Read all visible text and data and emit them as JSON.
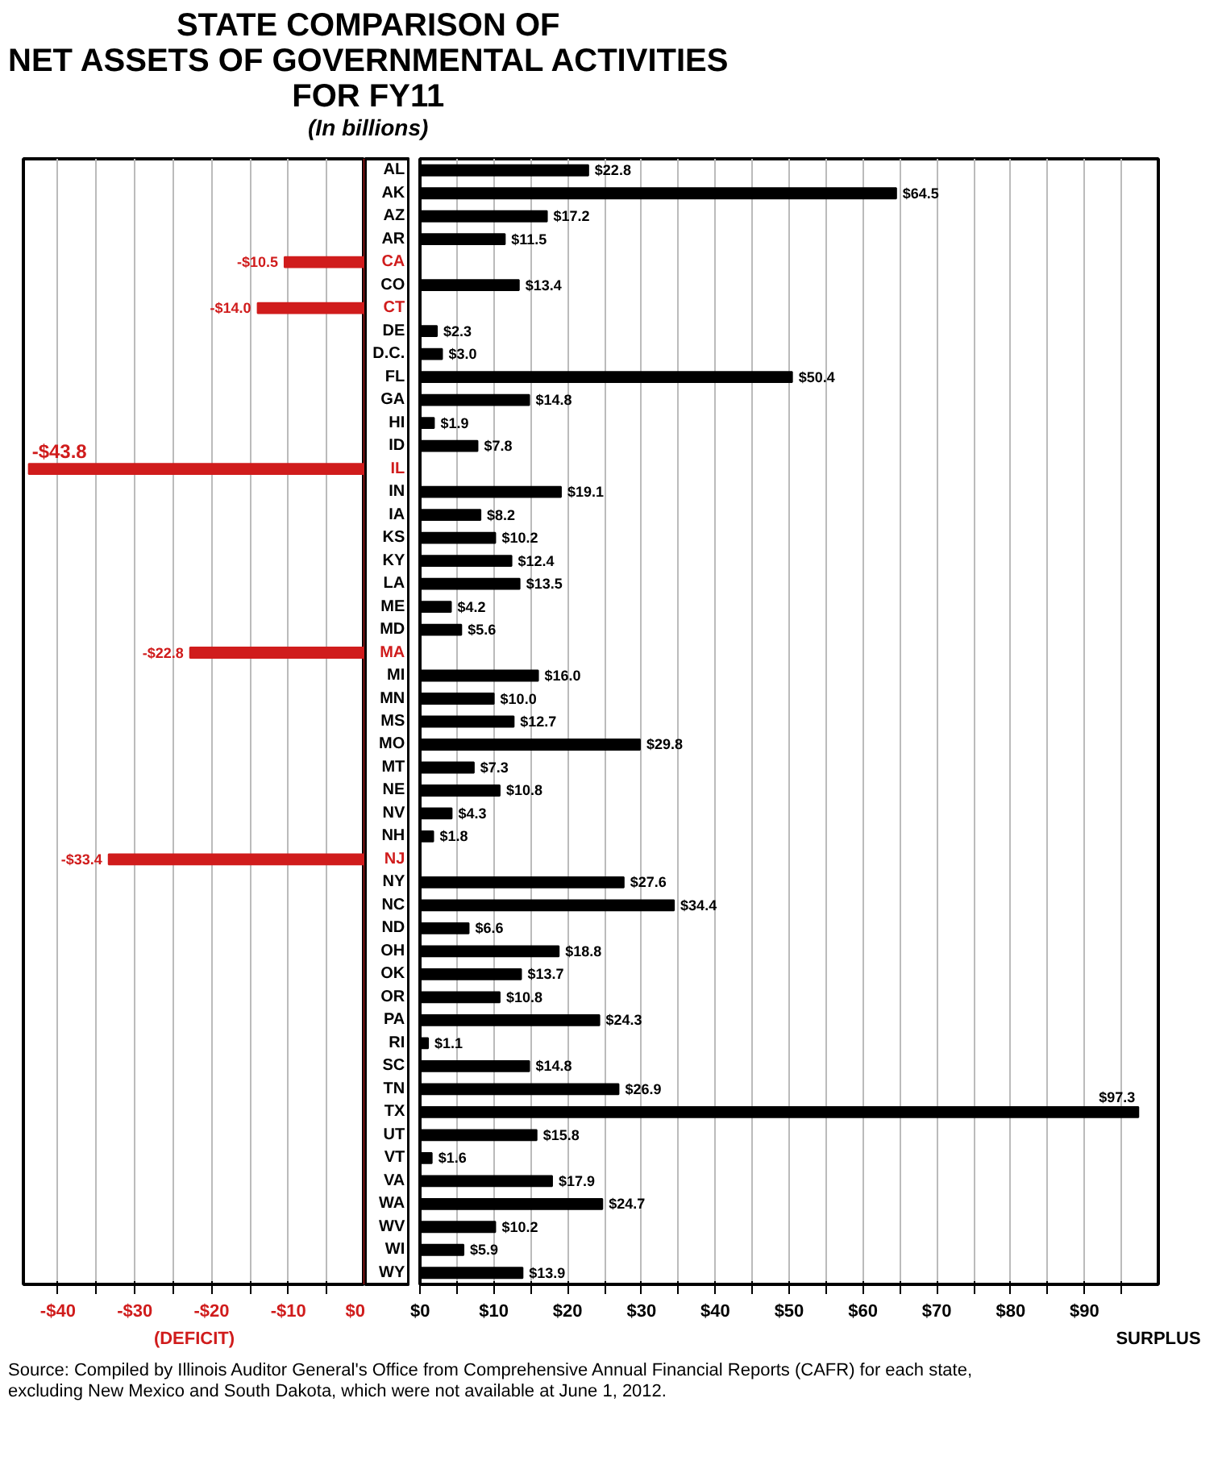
{
  "chart_data": [
    {
      "type": "bar",
      "orientation": "horizontal",
      "title": "STATE COMPARISON OF\nNET ASSETS OF GOVERNMENTAL ACTIVITIES\nFOR FY11",
      "subtitle": "(In billions)",
      "categories": [
        null,
        null,
        null,
        null,
        "CA",
        null,
        "CT",
        null,
        null,
        null,
        null,
        null,
        null,
        "IL",
        null,
        null,
        null,
        null,
        null,
        null,
        null,
        "MA",
        null,
        null,
        null,
        null,
        null,
        null,
        null,
        null,
        "NJ",
        null,
        null,
        null,
        null,
        null,
        null,
        null,
        null,
        null,
        null,
        null,
        null,
        null,
        null,
        null,
        null,
        null,
        null
      ],
      "values": [
        null,
        null,
        null,
        null,
        -10.5,
        null,
        -14.0,
        null,
        null,
        null,
        null,
        null,
        null,
        -43.8,
        null,
        null,
        null,
        null,
        null,
        null,
        null,
        -22.8,
        null,
        null,
        null,
        null,
        null,
        null,
        null,
        null,
        -33.4,
        null,
        null,
        null,
        null,
        null,
        null,
        null,
        null,
        null,
        null,
        null,
        null,
        null,
        null,
        null,
        null,
        null,
        null
      ],
      "value_labels": [
        null,
        null,
        null,
        null,
        "-$10.5",
        null,
        "-$14.0",
        null,
        null,
        null,
        null,
        null,
        null,
        "-$43.8",
        null,
        null,
        null,
        null,
        null,
        null,
        null,
        "-$22.8",
        null,
        null,
        null,
        null,
        null,
        null,
        null,
        null,
        "-$33.4",
        null,
        null,
        null,
        null,
        null,
        null,
        null,
        null,
        null,
        null,
        null,
        null,
        null,
        null,
        null,
        null,
        null,
        null
      ],
      "color": "#d01c1c",
      "xlim": [
        -44.5,
        0
      ],
      "xticks": [
        {
          "value": -40,
          "label": "-$40"
        },
        {
          "value": -35,
          "label": null
        },
        {
          "value": -30,
          "label": "-$30"
        },
        {
          "value": -25,
          "label": null
        },
        {
          "value": -20,
          "label": "-$20"
        },
        {
          "value": -15,
          "label": null
        },
        {
          "value": -10,
          "label": "-$10"
        },
        {
          "value": -5,
          "label": null
        },
        {
          "value": 0,
          "label": "$0"
        }
      ],
      "xlabel": "(DEFICIT)",
      "grid": "x"
    },
    {
      "type": "bar",
      "orientation": "horizontal",
      "categories": [
        "AL",
        "AK",
        "AZ",
        "AR",
        null,
        "CO",
        null,
        "DE",
        "D.C.",
        "FL",
        "GA",
        "HI",
        "ID",
        null,
        "IN",
        "IA",
        "KS",
        "KY",
        "LA",
        "ME",
        "MD",
        null,
        "MI",
        "MN",
        "MS",
        "MO",
        "MT",
        "NE",
        "NV",
        "NH",
        null,
        "NY",
        "NC",
        "ND",
        "OH",
        "OK",
        "OR",
        "PA",
        "RI",
        "SC",
        "TN",
        "TX",
        "UT",
        "VT",
        "VA",
        "WA",
        "WV",
        "WI",
        "WY"
      ],
      "values": [
        22.8,
        64.5,
        17.2,
        11.5,
        null,
        13.4,
        null,
        2.3,
        3.0,
        50.4,
        14.8,
        1.9,
        7.8,
        null,
        19.1,
        8.2,
        10.2,
        12.4,
        13.5,
        4.2,
        5.6,
        null,
        16.0,
        10.0,
        12.7,
        29.8,
        7.3,
        10.8,
        4.3,
        1.8,
        null,
        27.6,
        34.4,
        6.6,
        18.8,
        13.7,
        10.8,
        24.3,
        1.1,
        14.8,
        26.9,
        97.3,
        15.8,
        1.6,
        17.9,
        24.7,
        10.2,
        5.9,
        13.9
      ],
      "value_labels": [
        "$22.8",
        "$64.5",
        "$17.2",
        "$11.5",
        null,
        "$13.4",
        null,
        "$2.3",
        "$3.0",
        "$50.4",
        "$14.8",
        "$1.9",
        "$7.8",
        null,
        "$19.1",
        "$8.2",
        "$10.2",
        "$12.4",
        "$13.5",
        "$4.2",
        "$5.6",
        null,
        "$16.0",
        "$10.0",
        "$12.7",
        "$29.8",
        "$7.3",
        "$10.8",
        "$4.3",
        "$1.8",
        null,
        "$27.6",
        "$34.4",
        "$6.6",
        "$18.8",
        "$13.7",
        "$10.8",
        "$24.3",
        "$1.1",
        "$14.8",
        "$26.9",
        "$97.3",
        "$15.8",
        "$1.6",
        "$17.9",
        "$24.7",
        "$10.2",
        "$5.9",
        "$13.9"
      ],
      "color": "#000000",
      "xlim": [
        0,
        100
      ],
      "xticks": [
        {
          "value": 0,
          "label": "$0"
        },
        {
          "value": 5,
          "label": null
        },
        {
          "value": 10,
          "label": "$10"
        },
        {
          "value": 15,
          "label": null
        },
        {
          "value": 20,
          "label": "$20"
        },
        {
          "value": 25,
          "label": null
        },
        {
          "value": 30,
          "label": "$30"
        },
        {
          "value": 35,
          "label": null
        },
        {
          "value": 40,
          "label": "$40"
        },
        {
          "value": 45,
          "label": null
        },
        {
          "value": 50,
          "label": "$50"
        },
        {
          "value": 55,
          "label": null
        },
        {
          "value": 60,
          "label": "$60"
        },
        {
          "value": 65,
          "label": null
        },
        {
          "value": 70,
          "label": "$70"
        },
        {
          "value": 75,
          "label": null
        },
        {
          "value": 80,
          "label": "$80"
        },
        {
          "value": 85,
          "label": null
        },
        {
          "value": 90,
          "label": "$90"
        },
        {
          "value": 95,
          "label": null
        }
      ],
      "xlabel": "SURPLUS",
      "grid": "x",
      "annotations": [
        "Source: Compiled by Illinois Auditor General's Office from Comprehensive Annual Financial Reports (CAFR) for each state,\nexcluding New Mexico and South Dakota, which were not available at June 1, 2012."
      ]
    }
  ]
}
